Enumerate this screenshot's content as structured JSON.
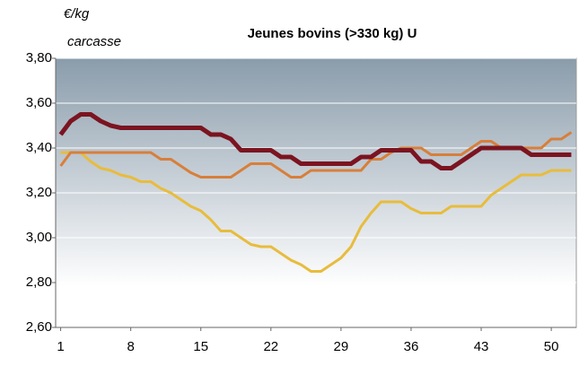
{
  "chart_data": {
    "type": "line",
    "title": "Jeunes bovins (>330 kg) U",
    "y_label": [
      "€/kg",
      "carcasse"
    ],
    "x": [
      1,
      2,
      3,
      4,
      5,
      6,
      7,
      8,
      9,
      10,
      11,
      12,
      13,
      14,
      15,
      16,
      17,
      18,
      19,
      20,
      21,
      22,
      23,
      24,
      25,
      26,
      27,
      28,
      29,
      30,
      31,
      32,
      33,
      34,
      35,
      36,
      37,
      38,
      39,
      40,
      41,
      42,
      43,
      44,
      45,
      46,
      47,
      48,
      49,
      50,
      51,
      52
    ],
    "series": [
      {
        "color": "#e8bc3c",
        "width": 3,
        "values": [
          3.38,
          3.38,
          3.38,
          3.34,
          3.31,
          3.3,
          3.28,
          3.27,
          3.25,
          3.25,
          3.22,
          3.2,
          3.17,
          3.14,
          3.12,
          3.08,
          3.03,
          3.03,
          3.0,
          2.97,
          2.96,
          2.96,
          2.93,
          2.9,
          2.88,
          2.85,
          2.85,
          2.88,
          2.91,
          2.96,
          3.05,
          3.11,
          3.16,
          3.16,
          3.16,
          3.13,
          3.11,
          3.11,
          3.11,
          3.14,
          3.14,
          3.14,
          3.14,
          3.19,
          3.22,
          3.25,
          3.28,
          3.28,
          3.28,
          3.3,
          3.3,
          3.3
        ]
      },
      {
        "color": "#d87f3a",
        "width": 3,
        "values": [
          3.32,
          3.38,
          3.38,
          3.38,
          3.38,
          3.38,
          3.38,
          3.38,
          3.38,
          3.38,
          3.35,
          3.35,
          3.32,
          3.29,
          3.27,
          3.27,
          3.27,
          3.27,
          3.3,
          3.33,
          3.33,
          3.33,
          3.3,
          3.27,
          3.27,
          3.3,
          3.3,
          3.3,
          3.3,
          3.3,
          3.3,
          3.35,
          3.35,
          3.38,
          3.4,
          3.4,
          3.4,
          3.37,
          3.37,
          3.37,
          3.37,
          3.4,
          3.43,
          3.43,
          3.4,
          3.4,
          3.4,
          3.4,
          3.4,
          3.44,
          3.44,
          3.47
        ]
      },
      {
        "color": "#7b1420",
        "width": 5,
        "values": [
          3.46,
          3.52,
          3.55,
          3.55,
          3.52,
          3.5,
          3.49,
          3.49,
          3.49,
          3.49,
          3.49,
          3.49,
          3.49,
          3.49,
          3.49,
          3.46,
          3.46,
          3.44,
          3.39,
          3.39,
          3.39,
          3.39,
          3.36,
          3.36,
          3.33,
          3.33,
          3.33,
          3.33,
          3.33,
          3.33,
          3.36,
          3.36,
          3.39,
          3.39,
          3.39,
          3.39,
          3.34,
          3.34,
          3.31,
          3.31,
          3.34,
          3.37,
          3.4,
          3.4,
          3.4,
          3.4,
          3.4,
          3.37,
          3.37,
          3.37,
          3.37,
          3.37
        ]
      }
    ],
    "xlim": [
      0.5,
      52.5
    ],
    "xticks": [
      1,
      8,
      15,
      22,
      29,
      36,
      43,
      50
    ],
    "ylim": [
      2.6,
      3.8
    ],
    "yticks": [
      {
        "value": 2.6,
        "label": "2,60"
      },
      {
        "value": 2.8,
        "label": "2,80"
      },
      {
        "value": 3.0,
        "label": "3,00"
      },
      {
        "value": 3.2,
        "label": "3,20"
      },
      {
        "value": 3.4,
        "label": "3,40"
      },
      {
        "value": 3.6,
        "label": "3,60"
      },
      {
        "value": 3.8,
        "label": "3,80"
      }
    ],
    "grid": true
  }
}
